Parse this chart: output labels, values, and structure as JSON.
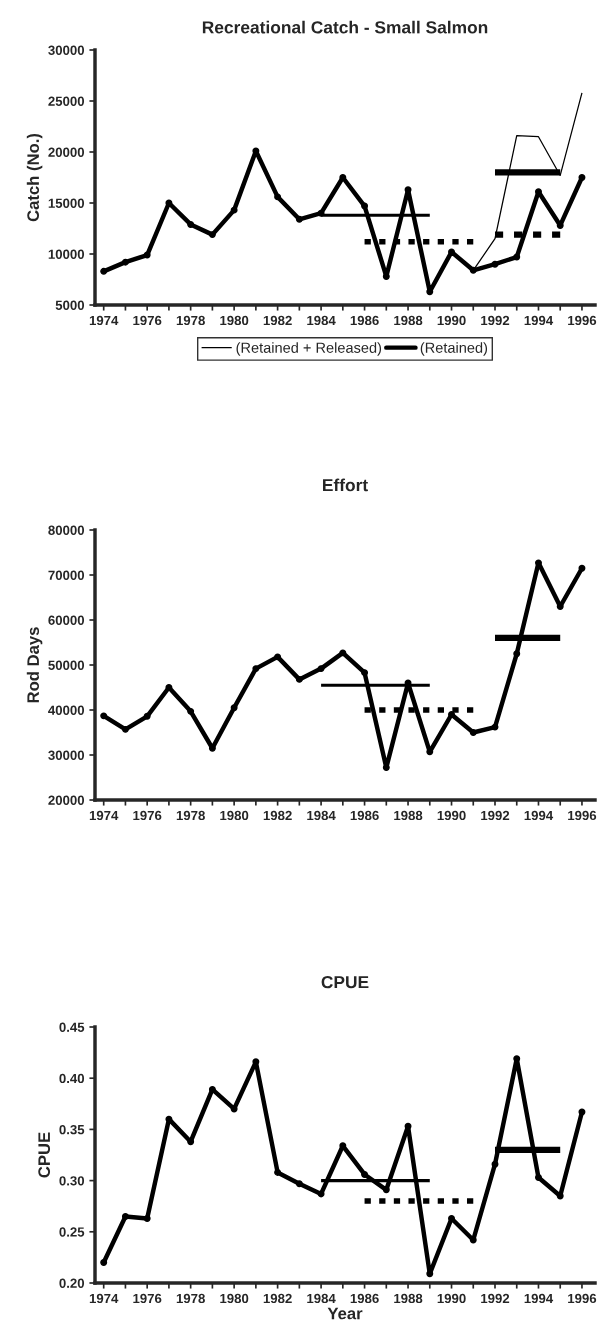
{
  "chart_data": [
    {
      "type": "line",
      "title": "Recreational Catch - Small Salmon",
      "ylabel": "Catch (No.)",
      "xlim": [
        1973.6,
        1996.6
      ],
      "ylim": [
        5000,
        30000
      ],
      "xticks": [
        1974,
        {
          "value": 1975,
          "label": null
        },
        1976,
        {
          "value": 1977,
          "label": null
        },
        1978,
        {
          "value": 1979,
          "label": null
        },
        1980,
        {
          "value": 1981,
          "label": null
        },
        1982,
        {
          "value": 1983,
          "label": null
        },
        1984,
        {
          "value": 1985,
          "label": null
        },
        1986,
        {
          "value": 1987,
          "label": null
        },
        1988,
        {
          "value": 1989,
          "label": null
        },
        1990,
        {
          "value": 1991,
          "label": null
        },
        1992,
        {
          "value": 1993,
          "label": null
        },
        1994,
        {
          "value": 1995,
          "label": null
        },
        1996
      ],
      "yticks": [
        5000,
        10000,
        15000,
        20000,
        25000,
        30000
      ],
      "grid": false,
      "legend": "bottom",
      "series": [
        {
          "name": "(Retained)",
          "color": "#000000",
          "marker": "circle",
          "line_style": "solid",
          "x": [
            1974,
            1975,
            1976,
            1977,
            1978,
            1979,
            1980,
            1981,
            1982,
            1983,
            1984,
            1985,
            1986,
            1987,
            1988,
            1989,
            1990,
            1991,
            1992,
            1993,
            1994,
            1995,
            1996
          ],
          "values": [
            8300,
            9200,
            9900,
            15000,
            12900,
            11900,
            14300,
            20100,
            15600,
            13400,
            14000,
            17500,
            14700,
            7800,
            16300,
            6300,
            10200,
            8400,
            9000,
            9700,
            16100,
            12800,
            17500
          ]
        },
        {
          "name": "(Retained + Released)",
          "color": "#000000",
          "marker": "none",
          "line_style": "solid",
          "x": [
            1991,
            1992,
            1993,
            1994,
            1995,
            1996
          ],
          "values": [
            8400,
            11500,
            21600,
            21500,
            17700,
            25800
          ]
        },
        {
          "color": "#000000",
          "marker": "none",
          "line_style": "solid",
          "x": [
            1984,
            1989
          ],
          "values": [
            13800,
            13800
          ]
        },
        {
          "color": "#000000",
          "marker": "none",
          "line_style": "dashed",
          "x": [
            1986,
            1991
          ],
          "values": [
            11200,
            11200
          ]
        },
        {
          "color": "#000000",
          "marker": "none",
          "line_style": "solid",
          "x": [
            1992,
            1995
          ],
          "values": [
            18000,
            18000
          ]
        },
        {
          "color": "#000000",
          "marker": "none",
          "line_style": "dashed",
          "x": [
            1992,
            1995
          ],
          "values": [
            11900,
            11900
          ]
        }
      ]
    },
    {
      "type": "line",
      "title": "Effort",
      "ylabel": "Rod Days",
      "xlim": [
        1973.6,
        1996.6
      ],
      "ylim": [
        20000,
        80000
      ],
      "xticks": [
        1974,
        {
          "value": 1975,
          "label": null
        },
        1976,
        {
          "value": 1977,
          "label": null
        },
        1978,
        {
          "value": 1979,
          "label": null
        },
        1980,
        {
          "value": 1981,
          "label": null
        },
        1982,
        {
          "value": 1983,
          "label": null
        },
        1984,
        {
          "value": 1985,
          "label": null
        },
        1986,
        {
          "value": 1987,
          "label": null
        },
        1988,
        {
          "value": 1989,
          "label": null
        },
        1990,
        {
          "value": 1991,
          "label": null
        },
        1992,
        {
          "value": 1993,
          "label": null
        },
        1994,
        {
          "value": 1995,
          "label": null
        },
        1996
      ],
      "yticks": [
        20000,
        30000,
        40000,
        50000,
        60000,
        70000,
        80000
      ],
      "grid": false,
      "series": [
        {
          "color": "#000000",
          "marker": "circle",
          "line_style": "solid",
          "x": [
            1974,
            1975,
            1976,
            1977,
            1978,
            1979,
            1980,
            1981,
            1982,
            1983,
            1984,
            1985,
            1986,
            1987,
            1988,
            1989,
            1990,
            1991,
            1992,
            1993,
            1994,
            1995,
            1996
          ],
          "values": [
            38700,
            35700,
            38600,
            45000,
            39700,
            31500,
            40500,
            49200,
            51800,
            46800,
            49200,
            52700,
            48300,
            27200,
            46000,
            30700,
            39000,
            35000,
            36200,
            52500,
            72700,
            63000,
            71500
          ]
        },
        {
          "color": "#000000",
          "marker": "none",
          "line_style": "solid",
          "x": [
            1984,
            1989
          ],
          "values": [
            45500,
            45500
          ]
        },
        {
          "color": "#000000",
          "marker": "none",
          "line_style": "dashed",
          "x": [
            1986,
            1991
          ],
          "values": [
            40000,
            40000
          ]
        },
        {
          "color": "#000000",
          "marker": "none",
          "line_style": "solid",
          "x": [
            1992,
            1995
          ],
          "values": [
            56000,
            56000
          ]
        }
      ]
    },
    {
      "type": "line",
      "title": "CPUE",
      "xlabel": "Year",
      "ylabel": "CPUE",
      "xlim": [
        1973.6,
        1996.6
      ],
      "ylim": [
        0.2,
        0.45
      ],
      "xticks": [
        1974,
        {
          "value": 1975,
          "label": null
        },
        1976,
        {
          "value": 1977,
          "label": null
        },
        1978,
        {
          "value": 1979,
          "label": null
        },
        1980,
        {
          "value": 1981,
          "label": null
        },
        1982,
        {
          "value": 1983,
          "label": null
        },
        1984,
        {
          "value": 1985,
          "label": null
        },
        1986,
        {
          "value": 1987,
          "label": null
        },
        1988,
        {
          "value": 1989,
          "label": null
        },
        1990,
        {
          "value": 1991,
          "label": null
        },
        1992,
        {
          "value": 1993,
          "label": null
        },
        1994,
        {
          "value": 1995,
          "label": null
        },
        1996
      ],
      "yticks": [
        {
          "value": 0.2,
          "label": "0.20"
        },
        {
          "value": 0.25,
          "label": "0.25"
        },
        {
          "value": 0.3,
          "label": "0.30"
        },
        {
          "value": 0.35,
          "label": "0.35"
        },
        {
          "value": 0.4,
          "label": "0.40"
        },
        {
          "value": 0.45,
          "label": "0.45"
        }
      ],
      "grid": false,
      "series": [
        {
          "color": "#000000",
          "marker": "circle",
          "line_style": "solid",
          "x": [
            1974,
            1975,
            1976,
            1977,
            1978,
            1979,
            1980,
            1981,
            1982,
            1983,
            1984,
            1985,
            1986,
            1987,
            1988,
            1989,
            1990,
            1991,
            1992,
            1993,
            1994,
            1995,
            1996
          ],
          "values": [
            0.22,
            0.265,
            0.263,
            0.36,
            0.338,
            0.389,
            0.37,
            0.416,
            0.308,
            0.297,
            0.287,
            0.334,
            0.306,
            0.291,
            0.353,
            0.209,
            0.263,
            0.242,
            0.316,
            0.419,
            0.303,
            0.285,
            0.367
          ]
        },
        {
          "color": "#000000",
          "marker": "none",
          "line_style": "solid",
          "x": [
            1984,
            1989
          ],
          "values": [
            0.3,
            0.3
          ]
        },
        {
          "color": "#000000",
          "marker": "none",
          "line_style": "dashed",
          "x": [
            1986,
            1991
          ],
          "values": [
            0.28,
            0.28
          ]
        },
        {
          "color": "#000000",
          "marker": "none",
          "line_style": "solid",
          "x": [
            1992,
            1995
          ],
          "values": [
            0.33,
            0.33
          ]
        }
      ]
    }
  ]
}
